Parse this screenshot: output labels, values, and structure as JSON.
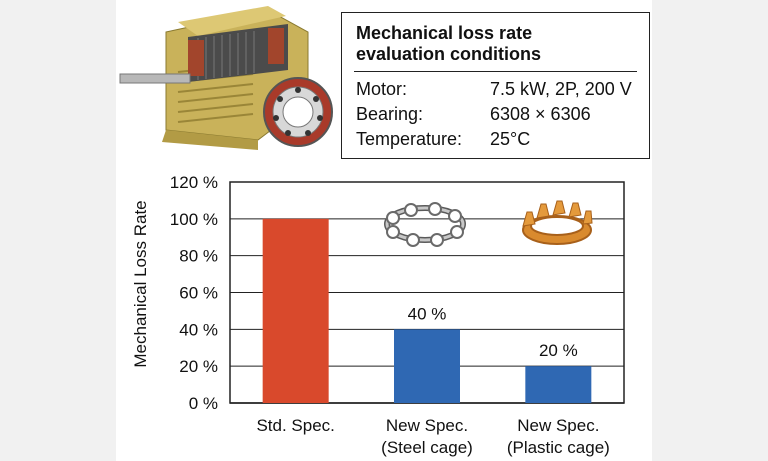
{
  "conditions": {
    "title_line1": "Mechanical loss rate",
    "title_line2": "evaluation conditions",
    "rows": [
      {
        "label": "Motor:",
        "value": "7.5 kW, 2P, 200 V"
      },
      {
        "label": "Bearing:",
        "value": "6308 × 6306"
      },
      {
        "label": "Temperature:",
        "value": "25°C"
      }
    ]
  },
  "illustrations": {
    "motor": "motor-cutaway-icon",
    "steel_cage": "steel-cage-icon",
    "plastic_cage": "plastic-cage-icon"
  },
  "colors": {
    "std": "#d9492c",
    "new": "#2f68b3"
  },
  "chart_data": {
    "type": "bar",
    "ylabel": "Mechanical Loss Rate",
    "xlabel": "",
    "ylim": [
      0,
      120
    ],
    "yticks": [
      "0 %",
      "20 %",
      "40 %",
      "60 %",
      "80 %",
      "100 %",
      "120 %"
    ],
    "grid": true,
    "categories": [
      [
        "Std. Spec."
      ],
      [
        "New Spec.",
        "(Steel cage)"
      ],
      [
        "New Spec.",
        "(Plastic cage)"
      ]
    ],
    "values": [
      100,
      40,
      20
    ],
    "data_labels": [
      "",
      "40 %",
      "20 %"
    ]
  }
}
